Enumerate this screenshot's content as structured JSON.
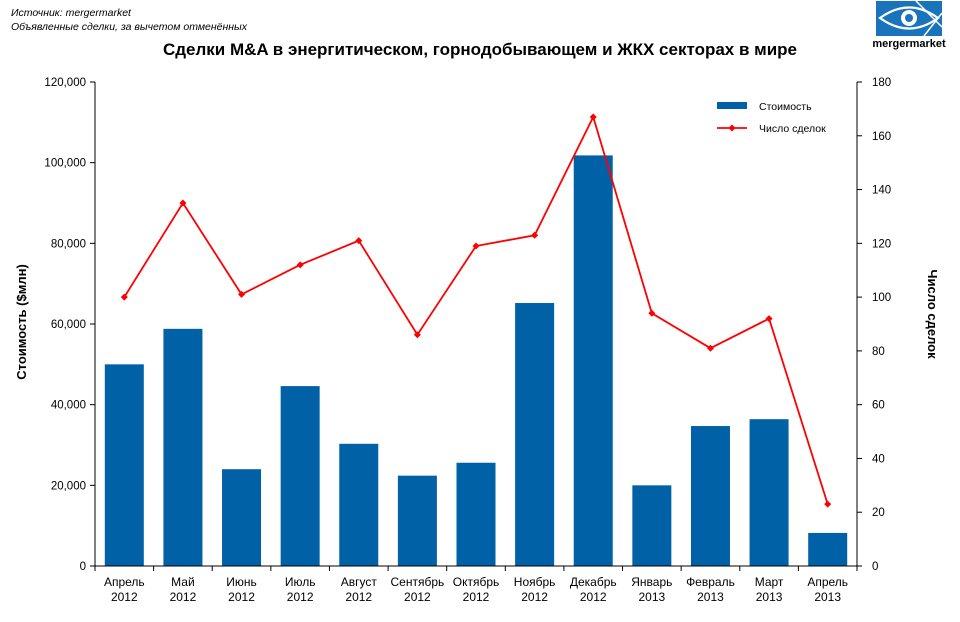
{
  "source": {
    "line1": "Источник: mergermarket",
    "line2": "Объявленные сделки, за вычетом отменённых"
  },
  "logo": {
    "text": "mergermarket",
    "icon": "eye-logo-icon"
  },
  "colors": {
    "bar": "#0061a7",
    "line": "#ff0000",
    "logo": "#1a74bb"
  },
  "chart_data": {
    "type": "bar",
    "title": "Сделки M&A в энергитическом, горнодобывающем и ЖКХ секторах в мире",
    "categories": [
      [
        "Апрель",
        "2012"
      ],
      [
        "Май",
        "2012"
      ],
      [
        "Июнь",
        "2012"
      ],
      [
        "Июль",
        "2012"
      ],
      [
        "Август",
        "2012"
      ],
      [
        "Сентябрь",
        "2012"
      ],
      [
        "Октябрь",
        "2012"
      ],
      [
        "Ноябрь",
        "2012"
      ],
      [
        "Декабрь",
        "2012"
      ],
      [
        "Январь",
        "2013"
      ],
      [
        "Февраль",
        "2013"
      ],
      [
        "Март",
        "2013"
      ],
      [
        "Апрель",
        "2013"
      ]
    ],
    "ylabel": "Стоимость ($млн)",
    "y2label": "Число сделок",
    "ylim": [
      0,
      120000
    ],
    "y2lim": [
      0,
      180
    ],
    "yticks": [
      "0",
      "20,000",
      "40,000",
      "60,000",
      "80,000",
      "100,000",
      "120,000"
    ],
    "y2ticks": [
      "0",
      "20",
      "40",
      "60",
      "80",
      "100",
      "120",
      "140",
      "160",
      "180"
    ],
    "legend_position": "top-right",
    "grid": false,
    "series": [
      {
        "name": "Стоимость",
        "type": "bar",
        "axis": "left",
        "values": [
          50000,
          58800,
          24000,
          44600,
          30300,
          22400,
          25600,
          65200,
          101800,
          20000,
          34700,
          36400,
          8200
        ]
      },
      {
        "name": "Число сделок",
        "type": "line",
        "axis": "right",
        "values": [
          100,
          135,
          101,
          112,
          121,
          86,
          119,
          123,
          167,
          94,
          81,
          92,
          23
        ]
      }
    ]
  }
}
